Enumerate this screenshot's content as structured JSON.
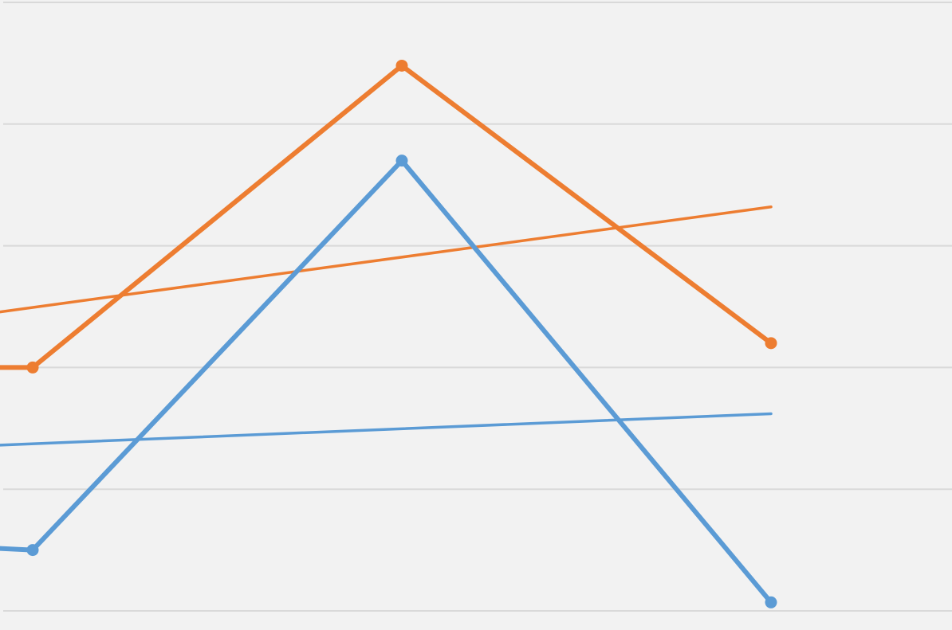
{
  "chart_data": {
    "type": "line",
    "title": "",
    "xlabel": "",
    "ylabel": "",
    "grid": true,
    "legend": "none",
    "ylim": [
      0,
      5
    ],
    "x": [
      0,
      1,
      2,
      3
    ],
    "series": [
      {
        "color": "#5b9bd5",
        "values": [
          0.65,
          0.5,
          3.7,
          0.07
        ],
        "markers": [
          false,
          true,
          true,
          true
        ],
        "trendline": {
          "start": 1.25,
          "end": 1.62
        }
      },
      {
        "color": "#ed7d31",
        "values": [
          2.0,
          2.0,
          4.48,
          2.2
        ],
        "markers": [
          false,
          true,
          true,
          true
        ],
        "trendline": {
          "start": 2.08,
          "end": 3.32
        }
      }
    ]
  }
}
